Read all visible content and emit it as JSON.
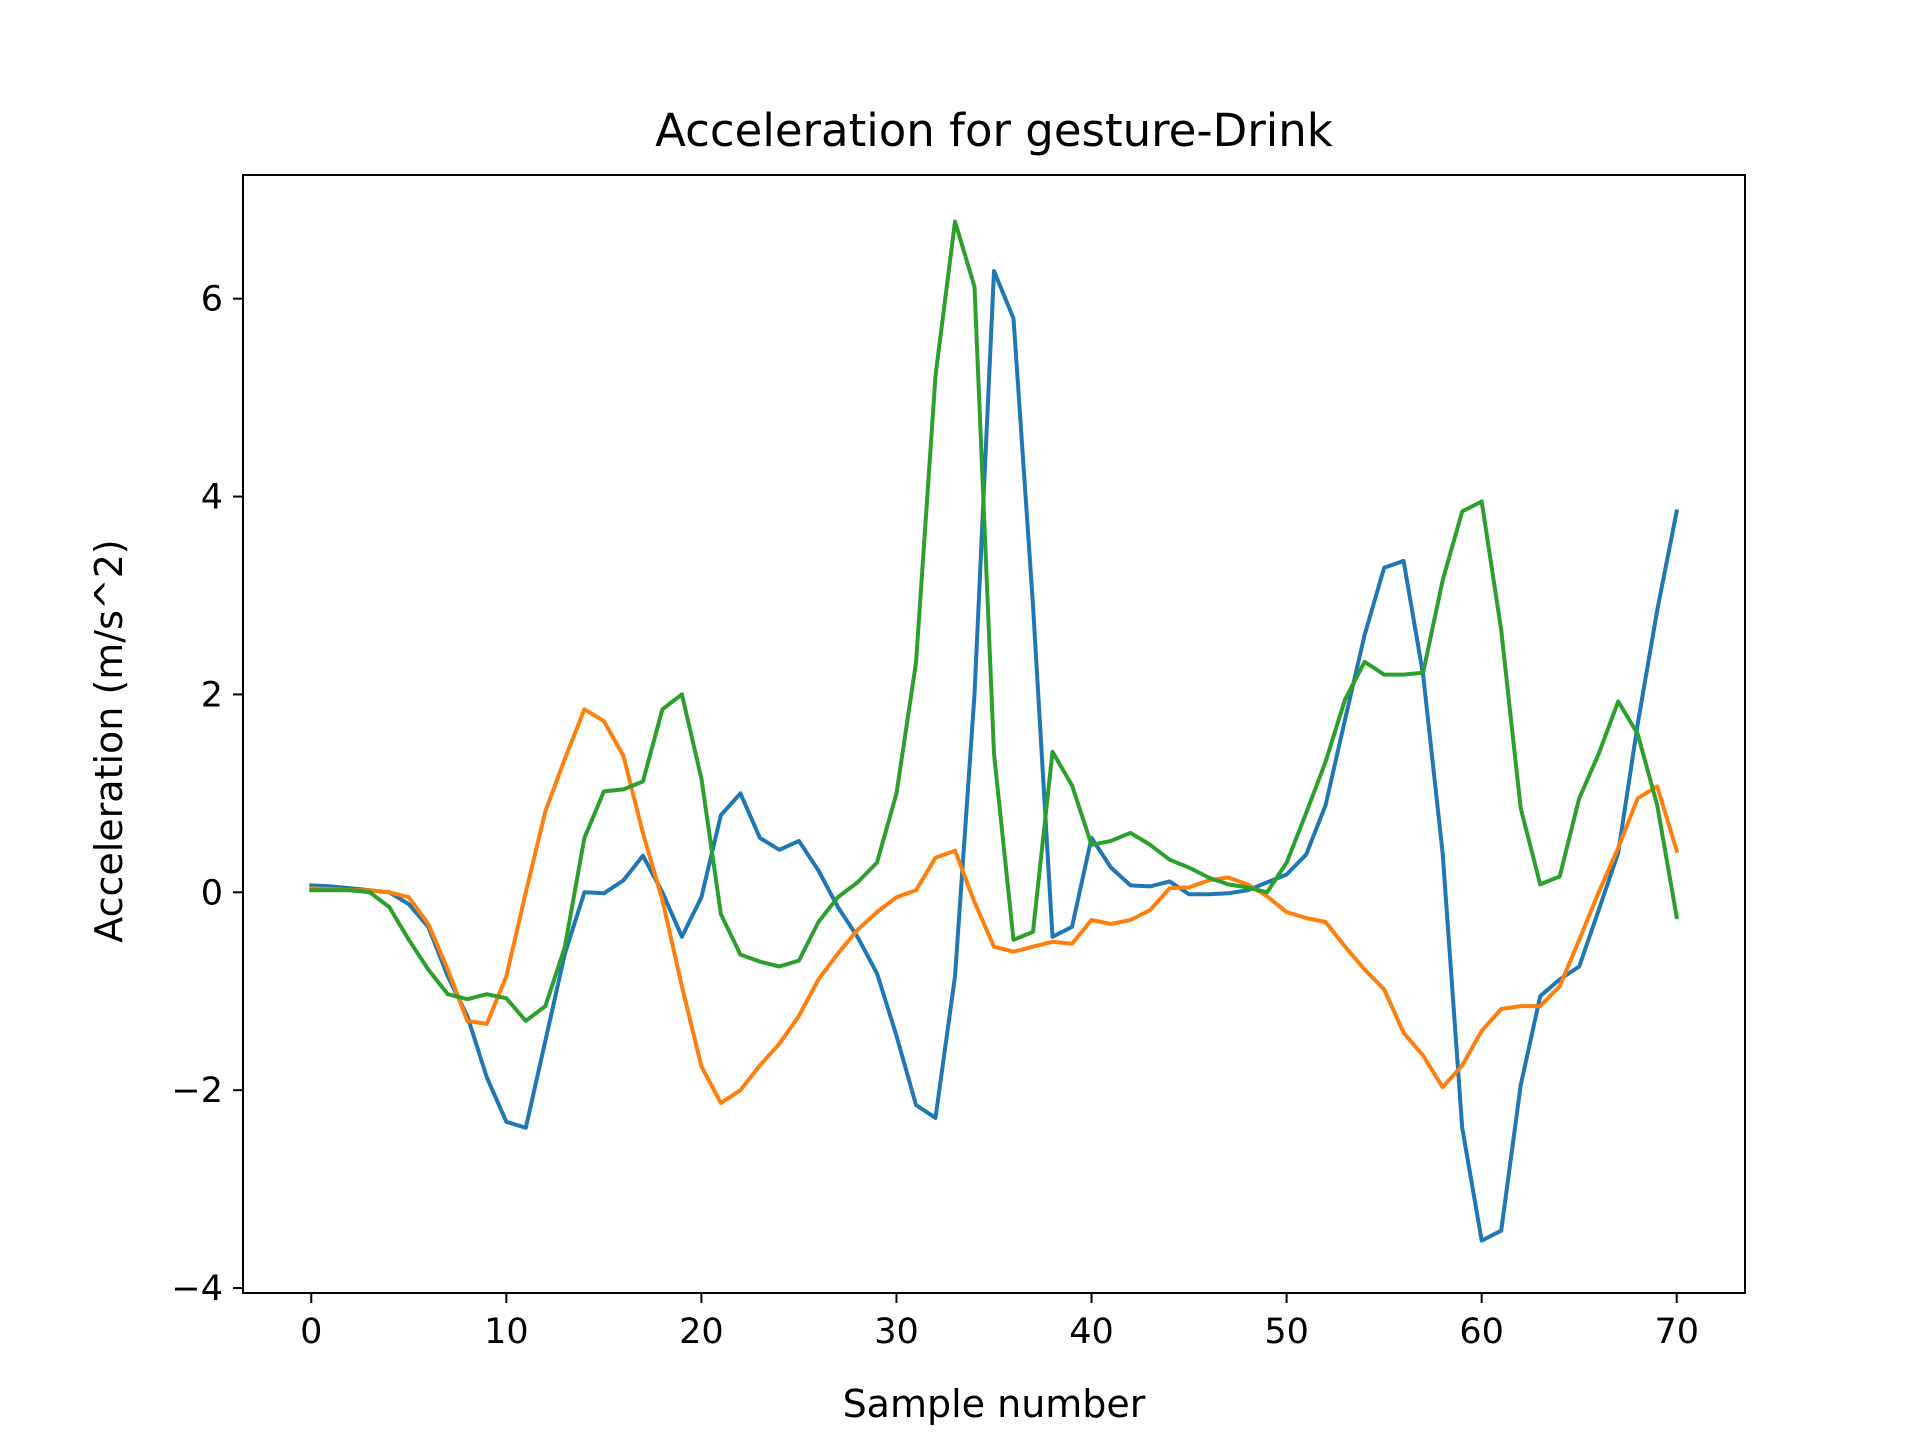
{
  "chart_data": {
    "type": "line",
    "title": "Acceleration for gesture-Drink",
    "xlabel": "Sample number",
    "ylabel": "Acceleration (m/s^2)",
    "xlim": [
      -3.5,
      73.5
    ],
    "ylim": [
      -4.05,
      7.25
    ],
    "xticks": [
      0,
      10,
      20,
      30,
      40,
      50,
      60,
      70
    ],
    "yticks": [
      -4,
      -2,
      0,
      2,
      4,
      6
    ],
    "ytick_labels": [
      "−4",
      "−2",
      "0",
      "2",
      "4",
      "6"
    ],
    "grid": false,
    "legend": "none",
    "x": [
      0,
      1,
      2,
      3,
      4,
      5,
      6,
      7,
      8,
      9,
      10,
      11,
      12,
      13,
      14,
      15,
      16,
      17,
      18,
      19,
      20,
      21,
      22,
      23,
      24,
      25,
      26,
      27,
      28,
      29,
      30,
      31,
      32,
      33,
      34,
      35,
      36,
      37,
      38,
      39,
      40,
      41,
      42,
      43,
      44,
      45,
      46,
      47,
      48,
      49,
      50,
      51,
      52,
      53,
      54,
      55,
      56,
      57,
      58,
      59,
      60,
      61,
      62,
      63,
      64,
      65,
      66,
      67,
      68,
      69,
      70
    ],
    "series": [
      {
        "color": "#1f77b4",
        "values": [
          0.07,
          0.06,
          0.04,
          0.02,
          0.0,
          -0.12,
          -0.35,
          -0.85,
          -1.25,
          -1.87,
          -2.32,
          -2.38,
          -1.5,
          -0.62,
          0.0,
          -0.01,
          0.12,
          0.37,
          0.0,
          -0.45,
          -0.05,
          0.78,
          1.0,
          0.55,
          0.43,
          0.52,
          0.22,
          -0.15,
          -0.45,
          -0.82,
          -1.45,
          -2.15,
          -2.28,
          -0.85,
          2.0,
          6.28,
          5.8,
          2.9,
          -0.45,
          -0.35,
          0.55,
          0.25,
          0.07,
          0.06,
          0.11,
          -0.02,
          -0.02,
          -0.01,
          0.02,
          0.1,
          0.18,
          0.38,
          0.88,
          1.75,
          2.6,
          3.28,
          3.35,
          2.2,
          0.4,
          -2.38,
          -3.52,
          -3.42,
          -1.95,
          -1.05,
          -0.88,
          -0.75,
          -0.18,
          0.4,
          1.7,
          2.85,
          3.85
        ]
      },
      {
        "color": "#ff7f0e",
        "values": [
          0.04,
          0.03,
          0.02,
          0.02,
          0.0,
          -0.05,
          -0.32,
          -0.78,
          -1.3,
          -1.33,
          -0.85,
          0.0,
          0.82,
          1.35,
          1.85,
          1.73,
          1.38,
          0.6,
          -0.08,
          -0.95,
          -1.76,
          -2.13,
          -2.0,
          -1.75,
          -1.53,
          -1.25,
          -0.88,
          -0.62,
          -0.38,
          -0.2,
          -0.05,
          0.02,
          0.35,
          0.42,
          -0.1,
          -0.55,
          -0.6,
          -0.55,
          -0.5,
          -0.52,
          -0.28,
          -0.32,
          -0.28,
          -0.18,
          0.04,
          0.05,
          0.12,
          0.15,
          0.08,
          -0.04,
          -0.2,
          -0.26,
          -0.3,
          -0.55,
          -0.78,
          -0.98,
          -1.42,
          -1.65,
          -1.97,
          -1.75,
          -1.4,
          -1.18,
          -1.15,
          -1.15,
          -0.95,
          -0.48,
          0.0,
          0.45,
          0.95,
          1.07,
          0.42
        ]
      },
      {
        "color": "#2ca02c",
        "values": [
          0.02,
          0.02,
          0.02,
          0.0,
          -0.15,
          -0.48,
          -0.78,
          -1.03,
          -1.08,
          -1.03,
          -1.07,
          -1.3,
          -1.15,
          -0.55,
          0.55,
          1.02,
          1.04,
          1.12,
          1.85,
          2.0,
          1.15,
          -0.22,
          -0.63,
          -0.7,
          -0.75,
          -0.69,
          -0.3,
          -0.05,
          0.1,
          0.3,
          1.0,
          2.32,
          5.22,
          6.78,
          6.12,
          1.4,
          -0.48,
          -0.4,
          1.42,
          1.08,
          0.48,
          0.52,
          0.6,
          0.48,
          0.33,
          0.25,
          0.15,
          0.08,
          0.05,
          0.0,
          0.3,
          0.8,
          1.32,
          1.95,
          2.33,
          2.2,
          2.2,
          2.22,
          3.15,
          3.85,
          3.95,
          2.65,
          0.85,
          0.08,
          0.16,
          0.95,
          1.4,
          1.93,
          1.6,
          0.88,
          -0.25
        ]
      }
    ]
  }
}
